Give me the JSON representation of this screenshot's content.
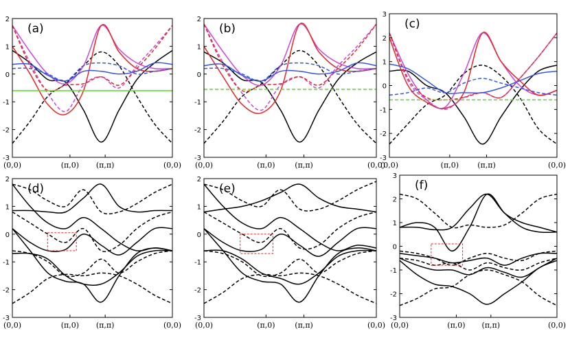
{
  "chart_data": [
    {
      "type": "line",
      "label": "(a)",
      "ylim": [
        -3,
        2
      ],
      "yticks": [
        "-3",
        "-2",
        "-1",
        "0",
        "1",
        "2"
      ],
      "xticks": [
        "(0,0)",
        "(π,0)",
        "(π,π)",
        "(0,0)"
      ],
      "series": [
        {
          "name": "black solid",
          "color": "#000000",
          "dash": false,
          "y": [
            0.85,
            0.4,
            -0.2,
            -0.3,
            -1.3,
            -2.45,
            -1.3,
            -0.2,
            0.4,
            0.85
          ]
        },
        {
          "name": "black dashed",
          "color": "#000000",
          "dash": true,
          "y": [
            -2.5,
            -1.7,
            -0.8,
            -0.35,
            0.3,
            0.8,
            0.3,
            -0.8,
            -1.8,
            -2.5
          ]
        },
        {
          "name": "magenta solid",
          "color": "#cc44dd",
          "dash": false,
          "y": [
            1.75,
            0.8,
            0.0,
            -0.35,
            0.3,
            1.75,
            0.9,
            0.4,
            0.2,
            0.2
          ]
        },
        {
          "name": "red solid",
          "color": "#ee2222",
          "dash": false,
          "y": [
            1.0,
            0.0,
            -1.1,
            -1.45,
            -0.6,
            1.75,
            0.8,
            0.2,
            0.1,
            0.2
          ]
        },
        {
          "name": "magenta dashed",
          "color": "#cc44dd",
          "dash": true,
          "y": [
            1.75,
            0.4,
            -0.7,
            -1.35,
            -0.4,
            -0.1,
            -0.5,
            0.3,
            1.0,
            1.75
          ]
        },
        {
          "name": "red dashed",
          "color": "#ee2222",
          "dash": true,
          "y": [
            1.75,
            0.3,
            -0.6,
            -0.4,
            -0.35,
            -0.1,
            -0.4,
            0.2,
            0.9,
            1.75
          ]
        },
        {
          "name": "blue solid",
          "color": "#3355ee",
          "dash": false,
          "y": [
            0.35,
            0.35,
            -0.05,
            -0.25,
            0.1,
            0.1,
            0.0,
            0.1,
            0.4,
            0.35
          ]
        },
        {
          "name": "blue dashed",
          "color": "#3355ee",
          "dash": true,
          "y": [
            0.2,
            0.2,
            0.0,
            -0.25,
            0.3,
            0.4,
            0.3,
            0.0,
            0.1,
            0.2
          ]
        },
        {
          "name": "green solid",
          "color": "#55dd22",
          "dash": false,
          "y": [
            -0.6,
            -0.6,
            -0.6,
            -0.6,
            -0.6,
            -0.6,
            -0.6,
            -0.6,
            -0.6,
            -0.6
          ]
        }
      ]
    },
    {
      "type": "line",
      "label": "(b)",
      "ylim": [
        -3,
        2
      ],
      "yticks": [
        "-3",
        "-2",
        "-1",
        "0",
        "1",
        "2"
      ],
      "xticks": [
        "(0,0)",
        "(π,0)",
        "(π,π)",
        "(0,0)"
      ],
      "series": [
        {
          "name": "black solid",
          "color": "#000000",
          "dash": false,
          "y": [
            0.8,
            0.4,
            -0.2,
            -0.3,
            -1.3,
            -2.45,
            -1.3,
            -0.2,
            0.4,
            0.8
          ]
        },
        {
          "name": "black dashed",
          "color": "#000000",
          "dash": true,
          "y": [
            -2.5,
            -1.7,
            -0.8,
            -0.35,
            0.3,
            0.85,
            0.3,
            -0.8,
            -1.8,
            -2.5
          ]
        },
        {
          "name": "magenta solid",
          "color": "#cc44dd",
          "dash": false,
          "y": [
            1.8,
            0.8,
            -0.05,
            -0.4,
            0.3,
            1.8,
            0.9,
            0.4,
            0.2,
            0.2
          ]
        },
        {
          "name": "red solid",
          "color": "#ee2222",
          "dash": false,
          "y": [
            1.0,
            -0.1,
            -1.1,
            -1.4,
            -0.6,
            1.8,
            0.8,
            0.2,
            0.1,
            0.2
          ]
        },
        {
          "name": "magenta dashed",
          "color": "#cc44dd",
          "dash": true,
          "y": [
            1.8,
            0.4,
            -0.7,
            -1.3,
            -0.4,
            -0.1,
            -0.5,
            0.3,
            1.0,
            1.8
          ]
        },
        {
          "name": "red dashed",
          "color": "#ee2222",
          "dash": true,
          "y": [
            1.8,
            0.3,
            -0.6,
            -0.4,
            -0.35,
            -0.1,
            -0.4,
            0.2,
            0.9,
            1.8
          ]
        },
        {
          "name": "blue solid",
          "color": "#3355ee",
          "dash": false,
          "y": [
            0.3,
            0.35,
            -0.05,
            -0.25,
            0.1,
            0.1,
            0.0,
            0.1,
            0.4,
            0.3
          ]
        },
        {
          "name": "blue dashed",
          "color": "#3355ee",
          "dash": true,
          "y": [
            0.2,
            0.2,
            0.0,
            -0.25,
            0.3,
            0.4,
            0.3,
            0.0,
            0.1,
            0.2
          ]
        },
        {
          "name": "green dashed",
          "color": "#55dd22",
          "dash": true,
          "y": [
            -0.55,
            -0.55,
            -0.55,
            -0.55,
            -0.55,
            -0.55,
            -0.55,
            -0.55,
            -0.55,
            -0.55
          ]
        }
      ]
    },
    {
      "type": "line",
      "label": "(c)",
      "ylim": [
        -3,
        3
      ],
      "yticks": [
        "-3",
        "-2",
        "-1",
        "0",
        "1",
        "2",
        "3"
      ],
      "xticks": [
        "(0,0)",
        "(π,0)",
        "(π,π)",
        "(0,0)"
      ],
      "series": [
        {
          "name": "black solid",
          "color": "#000000",
          "dash": false,
          "y": [
            0.6,
            0.6,
            0.0,
            -0.3,
            -1.3,
            -2.45,
            -1.3,
            -0.2,
            0.6,
            0.85
          ]
        },
        {
          "name": "black dashed",
          "color": "#000000",
          "dash": true,
          "y": [
            -2.45,
            -1.6,
            -0.8,
            -0.4,
            0.5,
            0.85,
            0.4,
            -0.5,
            -1.8,
            -2.45
          ]
        },
        {
          "name": "magenta solid",
          "color": "#cc44dd",
          "dash": false,
          "y": [
            2.2,
            0.5,
            -0.6,
            -0.9,
            0.5,
            2.2,
            1.0,
            0.0,
            -0.4,
            -0.2
          ]
        },
        {
          "name": "red solid",
          "color": "#ee2222",
          "dash": false,
          "y": [
            2.0,
            0.0,
            -0.7,
            -0.95,
            -0.3,
            2.2,
            1.0,
            0.2,
            -0.4,
            -0.2
          ]
        },
        {
          "name": "magenta dashed",
          "color": "#cc44dd",
          "dash": true,
          "y": [
            2.2,
            0.2,
            -0.6,
            -1.0,
            -0.5,
            -0.3,
            -0.5,
            0.3,
            1.2,
            2.2
          ]
        },
        {
          "name": "red dashed",
          "color": "#ee2222",
          "dash": true,
          "y": [
            2.2,
            0.3,
            -0.5,
            -0.6,
            -0.5,
            -0.3,
            -0.5,
            0.3,
            1.2,
            2.2
          ]
        },
        {
          "name": "blue solid",
          "color": "#3355ee",
          "dash": false,
          "y": [
            0.9,
            0.7,
            0.2,
            -0.3,
            -0.3,
            -0.3,
            -0.1,
            0.2,
            0.5,
            0.6
          ]
        },
        {
          "name": "blue dashed",
          "color": "#3355ee",
          "dash": true,
          "y": [
            -0.4,
            -0.3,
            -0.1,
            -0.3,
            0.1,
            0.3,
            0.1,
            -0.1,
            -0.3,
            -0.4
          ]
        },
        {
          "name": "green dashed",
          "color": "#55dd22",
          "dash": true,
          "y": [
            -0.6,
            -0.6,
            -0.6,
            -0.6,
            -0.6,
            -0.6,
            -0.6,
            -0.6,
            -0.6,
            -0.6
          ]
        }
      ]
    },
    {
      "type": "line",
      "label": "(d)",
      "ylim": [
        -3,
        2
      ],
      "yticks": [
        "-3",
        "-2",
        "-1",
        "0",
        "1",
        "2"
      ],
      "xticks": [
        "(0,0)",
        "(π,0)",
        "(π,π)",
        "(0,0)"
      ],
      "highlight_box": {
        "x": [
          0.22,
          0.4
        ],
        "y": [
          -0.6,
          0.05
        ]
      },
      "series": [
        {
          "name": "s1",
          "color": "#000000",
          "dash": false,
          "y": [
            0.85,
            0.85,
            0.8,
            0.8,
            1.3,
            1.8,
            1.0,
            0.8,
            0.85,
            0.85
          ]
        },
        {
          "name": "s2",
          "color": "#000000",
          "dash": false,
          "y": [
            1.8,
            1.0,
            0.4,
            0.2,
            0.6,
            0.2,
            -0.3,
            -0.6,
            -0.5,
            -0.6
          ]
        },
        {
          "name": "s3",
          "color": "#000000",
          "dash": false,
          "y": [
            0.2,
            -0.3,
            -0.6,
            -0.55,
            0.0,
            -0.4,
            -0.75,
            -0.3,
            0.2,
            0.2
          ]
        },
        {
          "name": "s4",
          "color": "#000000",
          "dash": false,
          "y": [
            -0.7,
            -0.7,
            -0.9,
            -1.5,
            -1.8,
            -1.8,
            -1.4,
            -0.8,
            -0.6,
            -0.6
          ]
        },
        {
          "name": "s5",
          "color": "#000000",
          "dash": false,
          "y": [
            0.2,
            -0.6,
            -1.4,
            -1.7,
            -1.8,
            -2.45,
            -1.5,
            -0.7,
            -0.5,
            -0.6
          ]
        },
        {
          "name": "d1",
          "color": "#000000",
          "dash": true,
          "y": [
            1.8,
            1.6,
            1.2,
            1.0,
            1.6,
            0.8,
            0.8,
            1.1,
            1.5,
            1.8
          ]
        },
        {
          "name": "d2",
          "color": "#000000",
          "dash": true,
          "y": [
            0.8,
            0.4,
            0.0,
            -0.3,
            0.2,
            -0.6,
            -0.4,
            0.2,
            0.6,
            0.8
          ]
        },
        {
          "name": "d3",
          "color": "#000000",
          "dash": true,
          "y": [
            -0.6,
            -0.7,
            -1.0,
            -1.5,
            -1.4,
            -0.9,
            -1.4,
            -1.0,
            -0.7,
            -0.6
          ]
        },
        {
          "name": "d4",
          "color": "#000000",
          "dash": true,
          "y": [
            -2.5,
            -2.1,
            -1.6,
            -1.45,
            -1.5,
            -1.4,
            -1.5,
            -1.8,
            -2.2,
            -2.5
          ]
        }
      ]
    },
    {
      "type": "line",
      "label": "(e)",
      "ylim": [
        -3,
        2
      ],
      "yticks": [
        "-3",
        "-2",
        "-1",
        "0",
        "1",
        "2"
      ],
      "xticks": [
        "(0,0)",
        "(π,0)",
        "(π,π)",
        "(0,0)"
      ],
      "highlight_box": {
        "x": [
          0.21,
          0.4
        ],
        "y": [
          -0.7,
          0.0
        ]
      },
      "series": [
        {
          "name": "s1",
          "color": "#000000",
          "dash": false,
          "y": [
            0.8,
            0.9,
            1.0,
            1.2,
            1.5,
            1.8,
            1.3,
            1.0,
            0.9,
            0.8
          ]
        },
        {
          "name": "s2",
          "color": "#000000",
          "dash": false,
          "y": [
            1.8,
            1.0,
            0.4,
            0.2,
            0.6,
            0.2,
            -0.3,
            -0.6,
            -0.4,
            -0.5
          ]
        },
        {
          "name": "s3",
          "color": "#000000",
          "dash": false,
          "y": [
            0.2,
            -0.3,
            -0.6,
            -0.55,
            0.0,
            -0.4,
            -0.8,
            -0.3,
            0.2,
            0.2
          ]
        },
        {
          "name": "s4",
          "color": "#000000",
          "dash": false,
          "y": [
            -0.6,
            -0.6,
            -0.9,
            -1.4,
            -1.6,
            -1.8,
            -1.4,
            -0.8,
            -0.6,
            -0.6
          ]
        },
        {
          "name": "s5",
          "color": "#000000",
          "dash": false,
          "y": [
            0.2,
            -0.6,
            -1.4,
            -1.7,
            -1.8,
            -2.45,
            -1.5,
            -0.7,
            -0.5,
            -0.6
          ]
        },
        {
          "name": "d1",
          "color": "#000000",
          "dash": true,
          "y": [
            1.8,
            1.6,
            1.2,
            1.0,
            1.6,
            0.9,
            0.9,
            1.2,
            1.6,
            1.9
          ]
        },
        {
          "name": "d2",
          "color": "#000000",
          "dash": true,
          "y": [
            0.8,
            0.4,
            0.0,
            -0.3,
            0.2,
            -0.5,
            -0.4,
            0.2,
            0.6,
            0.8
          ]
        },
        {
          "name": "d3",
          "color": "#000000",
          "dash": true,
          "y": [
            -0.6,
            -0.7,
            -1.0,
            -1.5,
            -1.4,
            -0.9,
            -1.4,
            -1.0,
            -0.7,
            -0.6
          ]
        },
        {
          "name": "d4",
          "color": "#000000",
          "dash": true,
          "y": [
            -2.5,
            -2.1,
            -1.6,
            -1.45,
            -1.5,
            -1.4,
            -1.5,
            -1.8,
            -2.2,
            -2.5
          ]
        }
      ]
    },
    {
      "type": "line",
      "label": "(f)",
      "ylim": [
        -3,
        3
      ],
      "yticks": [
        "-3",
        "-2",
        "-1",
        "0",
        "1",
        "2",
        "3"
      ],
      "xticks": [
        "(0,0)",
        "(π,0)",
        "(π,π)",
        "(0,0)"
      ],
      "highlight_box": {
        "x": [
          0.2,
          0.4
        ],
        "y": [
          -0.8,
          0.1
        ]
      },
      "series": [
        {
          "name": "s1",
          "color": "#000000",
          "dash": false,
          "y": [
            0.8,
            0.8,
            0.7,
            0.8,
            1.6,
            2.2,
            1.4,
            1.0,
            0.8,
            0.6
          ]
        },
        {
          "name": "s2",
          "color": "#000000",
          "dash": false,
          "y": [
            0.8,
            1.0,
            0.8,
            -0.2,
            0.8,
            2.2,
            1.4,
            0.8,
            0.6,
            0.6
          ]
        },
        {
          "name": "s3",
          "color": "#000000",
          "dash": false,
          "y": [
            -0.3,
            -0.4,
            -0.5,
            -0.7,
            -0.6,
            -0.5,
            -0.8,
            -0.5,
            -0.3,
            -0.3
          ]
        },
        {
          "name": "s4",
          "color": "#000000",
          "dash": false,
          "y": [
            -0.5,
            -0.8,
            -1.0,
            -1.0,
            -1.2,
            -0.9,
            -1.1,
            -1.3,
            -0.9,
            -0.5
          ]
        },
        {
          "name": "s5",
          "color": "#000000",
          "dash": false,
          "y": [
            -0.6,
            -1.2,
            -1.6,
            -1.7,
            -2.0,
            -2.45,
            -2.0,
            -1.5,
            -0.9,
            -0.6
          ]
        },
        {
          "name": "d1",
          "color": "#000000",
          "dash": true,
          "y": [
            2.2,
            2.0,
            1.4,
            0.8,
            0.9,
            0.8,
            0.9,
            1.4,
            2.0,
            2.2
          ]
        },
        {
          "name": "d2",
          "color": "#000000",
          "dash": true,
          "y": [
            -0.2,
            -0.3,
            -0.5,
            -0.8,
            -0.5,
            -0.3,
            -0.5,
            -0.6,
            -0.3,
            -0.2
          ]
        },
        {
          "name": "d3",
          "color": "#000000",
          "dash": true,
          "y": [
            -0.5,
            -0.6,
            -0.8,
            -0.7,
            -1.0,
            -0.7,
            -0.9,
            -1.0,
            -0.7,
            -0.5
          ]
        },
        {
          "name": "d4",
          "color": "#000000",
          "dash": true,
          "y": [
            -2.5,
            -2.2,
            -1.8,
            -1.7,
            -1.2,
            -1.0,
            -1.2,
            -1.5,
            -2.1,
            -2.5
          ]
        }
      ]
    }
  ]
}
